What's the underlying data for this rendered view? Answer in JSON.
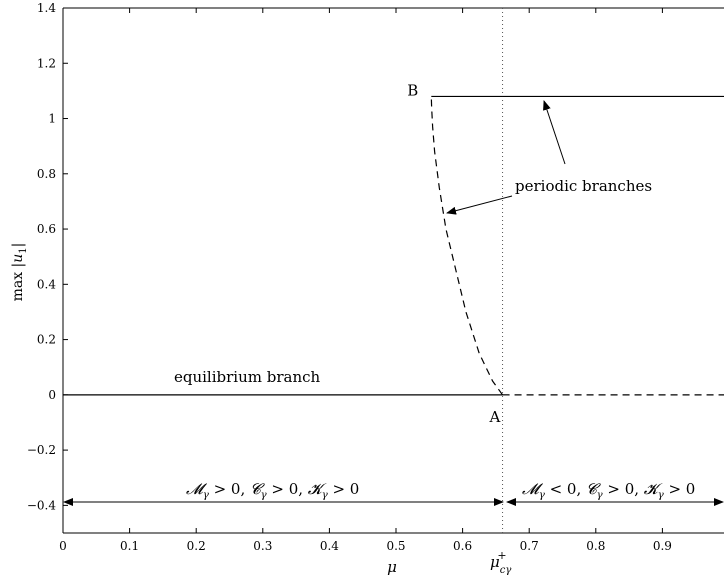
{
  "chart_data": {
    "type": "line",
    "title": "",
    "xlabel": "μ",
    "ylabel": "max |u1|",
    "xlim": [
      0,
      1
    ],
    "ylim": [
      -0.5,
      1.4
    ],
    "x_ticks": [
      0,
      0.1,
      0.2,
      0.3,
      0.4,
      0.5,
      0.6,
      0.7,
      0.8,
      0.9
    ],
    "x_tick_labels": [
      "0",
      "0.1",
      "0.2",
      "0.3",
      "0.4",
      "0.5",
      "0.6",
      "0.7",
      "0.8",
      "0.9"
    ],
    "y_ticks": [
      -0.4,
      -0.2,
      0,
      0.2,
      0.4,
      0.6,
      0.8,
      1,
      1.2,
      1.4
    ],
    "y_tick_labels": [
      "−0.4",
      "−0.2",
      "0",
      "0.2",
      "0.4",
      "0.6",
      "0.8",
      "1",
      "1.2",
      "1.4"
    ],
    "critical_value": {
      "x": 0.66,
      "label": "μ+cγ",
      "style": "dotted"
    },
    "series": [
      {
        "id": "equilibrium-stable",
        "style": "solid",
        "x": [
          0,
          0.66
        ],
        "y": [
          0,
          0
        ]
      },
      {
        "id": "equilibrium-unstable",
        "style": "dashed",
        "x": [
          0.66,
          1.0
        ],
        "y": [
          0,
          0
        ]
      },
      {
        "id": "periodic-unstable",
        "style": "dashed",
        "x": [
          0.66,
          0.645,
          0.625,
          0.605,
          0.59,
          0.575,
          0.565,
          0.558,
          0.555,
          0.5535,
          0.553
        ],
        "y": [
          0,
          0.05,
          0.15,
          0.3,
          0.45,
          0.6,
          0.75,
          0.88,
          0.97,
          1.04,
          1.08
        ]
      },
      {
        "id": "periodic-stable",
        "style": "solid",
        "x": [
          0.553,
          1.0
        ],
        "y": [
          1.08,
          1.08
        ]
      }
    ],
    "points": [
      {
        "label": "A",
        "x": 0.66,
        "y": 0
      },
      {
        "label": "B",
        "x": 0.553,
        "y": 1.08
      }
    ],
    "annotations": {
      "equilibrium": "equilibrium branch",
      "periodic": "periodic branches"
    },
    "regions": [
      {
        "range": [
          0,
          0.66
        ],
        "label": "Mγ > 0, Cγ > 0, Kγ > 0",
        "y": -0.38
      },
      {
        "range": [
          0.66,
          1.0
        ],
        "label": "Mγ < 0, Cγ > 0, Kγ > 0",
        "y": -0.38
      }
    ]
  }
}
